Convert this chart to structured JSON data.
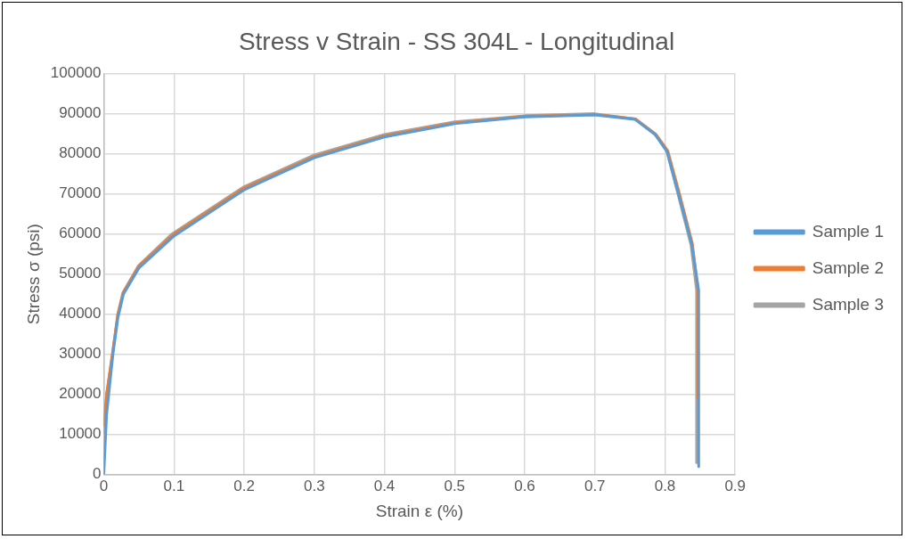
{
  "chart_data": {
    "type": "line",
    "title": "Stress v Strain - SS 304L - Longitudinal",
    "xlabel": "Strain ε (%)",
    "ylabel": "Stress σ (psi)",
    "xlim": [
      0,
      0.9
    ],
    "xticks": [
      0,
      0.1,
      0.2,
      0.3,
      0.4,
      0.5,
      0.6,
      0.7,
      0.8,
      0.9
    ],
    "ylim": [
      0,
      100000
    ],
    "yticks": [
      0,
      10000,
      20000,
      30000,
      40000,
      50000,
      60000,
      70000,
      80000,
      90000,
      100000
    ],
    "grid": true,
    "legend": "right",
    "marker": "none",
    "line_style": "solid",
    "series": [
      {
        "name": "Sample 1",
        "color": "#5b9bd5",
        "x": [
          0,
          0.004,
          0.013,
          0.02,
          0.028,
          0.05,
          0.1,
          0.2,
          0.3,
          0.4,
          0.5,
          0.6,
          0.7,
          0.757,
          0.786,
          0.803,
          0.82,
          0.838,
          0.848,
          0.848
        ],
        "values": [
          0,
          15000,
          30000,
          39000,
          45000,
          51500,
          59500,
          71000,
          79000,
          84200,
          87500,
          89200,
          89700,
          88600,
          84800,
          80500,
          69500,
          57500,
          46000,
          2000
        ]
      },
      {
        "name": "Sample 2",
        "color": "#ed7d31",
        "x": [
          0,
          0.004,
          0.013,
          0.02,
          0.028,
          0.05,
          0.1,
          0.2,
          0.3,
          0.4,
          0.5,
          0.6,
          0.7,
          0.758,
          0.787,
          0.804,
          0.821,
          0.839,
          0.847,
          0.847
        ],
        "values": [
          12000,
          20000,
          31000,
          40000,
          45500,
          52000,
          60000,
          71500,
          79300,
          84500,
          87700,
          89300,
          89800,
          88700,
          84900,
          80700,
          69800,
          57600,
          46000,
          19000
        ]
      },
      {
        "name": "Sample 3",
        "color": "#a5a5a5",
        "x": [
          0,
          0.004,
          0.013,
          0.02,
          0.027,
          0.049,
          0.097,
          0.2,
          0.3,
          0.4,
          0.5,
          0.6,
          0.7,
          0.757,
          0.786,
          0.802,
          0.819,
          0.837,
          0.845,
          0.845
        ],
        "values": [
          10000,
          20000,
          31000,
          40000,
          45300,
          52000,
          60000,
          71800,
          79700,
          84800,
          88000,
          89500,
          90000,
          88700,
          84800,
          81000,
          69600,
          57300,
          46000,
          3000
        ]
      }
    ]
  }
}
